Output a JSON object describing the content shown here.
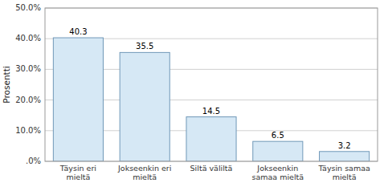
{
  "chart_data": {
    "type": "bar",
    "categories": [
      "Täysin eri\nmieltä",
      "Jokseenkin eri\nmieltä",
      "Siltä väliltä",
      "Jokseenkin\nsamaa mieltä",
      "Täysin samaa\nmieltä"
    ],
    "values": [
      40.3,
      35.5,
      14.5,
      6.5,
      3.2
    ],
    "color": "#d6e8f5",
    "ylabel": "Prosentti",
    "ylim": [
      0,
      50
    ],
    "yticks": [
      {
        "value": 0,
        "label": ".0%"
      },
      {
        "value": 10,
        "label": "10.0%"
      },
      {
        "value": 20,
        "label": "20.0%"
      },
      {
        "value": 30,
        "label": "30.0%"
      },
      {
        "value": 40,
        "label": "40.0%"
      },
      {
        "value": 50,
        "label": "50.0%"
      }
    ],
    "grid": true,
    "data_labels": true
  }
}
